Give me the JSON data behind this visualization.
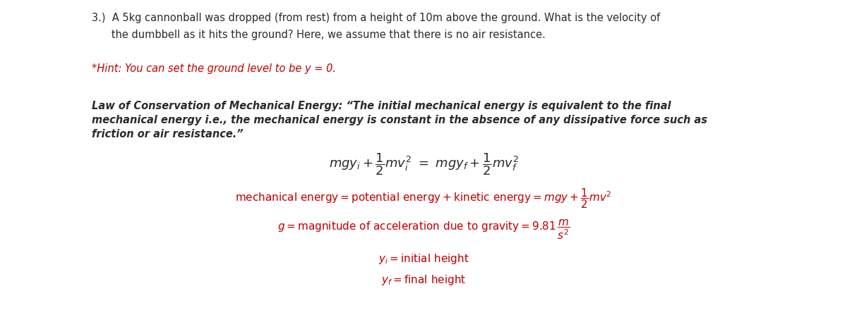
{
  "bg_color": "#ffffff",
  "text_color": "#2b2b2b",
  "red_color": "#c00000",
  "figsize": [
    12.0,
    4.4
  ],
  "dpi": 100,
  "q_line1": "3.)  A 5kg cannonball was dropped (from rest) from a height of 10m above the ground. What is the velocity of",
  "q_line2": "      the dumbbell as it hits the ground? Here, we assume that there is no air resistance.",
  "hint_text": "*Hint: You can set the ground level to be y = 0.",
  "law_line1": "Law of Conservation of Mechanical Energy: “The initial mechanical energy is equivalent to the final",
  "law_line2": "mechanical energy i.e., the mechanical energy is constant in the absence of any dissipative force such as",
  "law_line3": "friction or air resistance.”",
  "eq1": "$mgy_i + \\dfrac{1}{2}mv_i^2 \\ = \\ mgy_f + \\dfrac{1}{2}mv_f^2$",
  "eq2": "$\\mathrm{mechanical\\ energy} = \\mathrm{potential\\ energy} + \\mathrm{kinetic\\ energy} = mgy + \\dfrac{1}{2}mv^2$",
  "eq3": "$g = \\mathrm{magnitude\\ of\\ acceleration\\ due\\ to\\ gravity} = 9.81\\,\\dfrac{m}{s^2}$",
  "eq4": "$y_i = \\mathrm{initial\\ height}$",
  "eq5": "$y_f = \\mathrm{final\\ height}$",
  "font_size_text": 10.5,
  "font_size_eq1": 13,
  "font_size_eq": 11
}
